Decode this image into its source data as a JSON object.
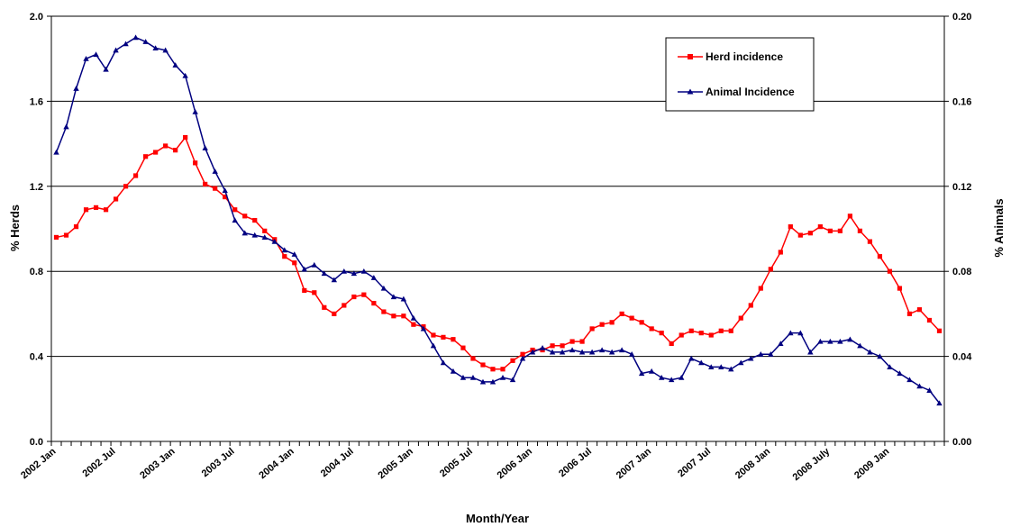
{
  "chart_data": {
    "type": "line",
    "title": "",
    "xlabel": "Month/Year",
    "ylabel_left": "% Herds",
    "ylabel_right": "% Animals",
    "ylim_left": [
      0,
      2.0
    ],
    "ylim_right": [
      0,
      0.2
    ],
    "yticks_left": [
      "0.0",
      "0.4",
      "0.8",
      "1.2",
      "1.6",
      "2.0"
    ],
    "yticks_right": [
      "0.00",
      "0.04",
      "0.08",
      "0.12",
      "0.16",
      "0.20"
    ],
    "x_tick_labels": [
      {
        "month_index": 0,
        "label": "2002 Jan"
      },
      {
        "month_index": 6,
        "label": "2002 Jul"
      },
      {
        "month_index": 12,
        "label": "2003 Jan"
      },
      {
        "month_index": 18,
        "label": "2003 Jul"
      },
      {
        "month_index": 24,
        "label": "2004 Jan"
      },
      {
        "month_index": 30,
        "label": "2004 Jul"
      },
      {
        "month_index": 36,
        "label": "2005 Jan"
      },
      {
        "month_index": 42,
        "label": "2005 Jul"
      },
      {
        "month_index": 48,
        "label": "2006 Jan"
      },
      {
        "month_index": 54,
        "label": "2006 Jul"
      },
      {
        "month_index": 60,
        "label": "2007 Jan"
      },
      {
        "month_index": 66,
        "label": "2007 Jul"
      },
      {
        "month_index": 72,
        "label": "2008 Jan"
      },
      {
        "month_index": 78,
        "label": "2008 July"
      },
      {
        "month_index": 84,
        "label": "2009 Jan"
      }
    ],
    "grid": true,
    "legend_position": "top-right",
    "series": [
      {
        "name": "Herd incidence",
        "axis": "left",
        "color": "#ff0000",
        "marker": "square",
        "values": [
          0.96,
          0.97,
          1.01,
          1.09,
          1.1,
          1.09,
          1.14,
          1.2,
          1.25,
          1.34,
          1.36,
          1.39,
          1.37,
          1.43,
          1.31,
          1.21,
          1.19,
          1.15,
          1.09,
          1.06,
          1.04,
          0.99,
          0.95,
          0.87,
          0.84,
          0.71,
          0.7,
          0.63,
          0.6,
          0.64,
          0.68,
          0.69,
          0.65,
          0.61,
          0.59,
          0.59,
          0.55,
          0.54,
          0.5,
          0.49,
          0.48,
          0.44,
          0.39,
          0.36,
          0.34,
          0.34,
          0.38,
          0.41,
          0.43,
          0.43,
          0.45,
          0.45,
          0.47,
          0.47,
          0.53,
          0.55,
          0.56,
          0.6,
          0.58,
          0.56,
          0.53,
          0.51,
          0.46,
          0.5,
          0.52,
          0.51,
          0.5,
          0.52,
          0.52,
          0.58,
          0.64,
          0.72,
          0.81,
          0.89,
          1.01,
          0.97,
          0.98,
          1.01,
          0.99,
          0.99,
          1.06,
          0.99,
          0.94,
          0.87,
          0.8,
          0.72,
          0.6,
          0.62,
          0.57,
          0.52
        ]
      },
      {
        "name": "Animal Incidence",
        "axis": "right",
        "color": "#000080",
        "marker": "triangle",
        "values": [
          0.136,
          0.148,
          0.166,
          0.18,
          0.182,
          0.175,
          0.184,
          0.187,
          0.19,
          0.188,
          0.185,
          0.184,
          0.177,
          0.172,
          0.155,
          0.138,
          0.127,
          0.118,
          0.104,
          0.098,
          0.097,
          0.096,
          0.094,
          0.09,
          0.088,
          0.081,
          0.083,
          0.079,
          0.076,
          0.08,
          0.079,
          0.08,
          0.077,
          0.072,
          0.068,
          0.067,
          0.058,
          0.053,
          0.045,
          0.037,
          0.033,
          0.03,
          0.03,
          0.028,
          0.028,
          0.03,
          0.029,
          0.039,
          0.042,
          0.044,
          0.042,
          0.042,
          0.043,
          0.042,
          0.042,
          0.043,
          0.042,
          0.043,
          0.041,
          0.032,
          0.033,
          0.03,
          0.029,
          0.03,
          0.039,
          0.037,
          0.035,
          0.035,
          0.034,
          0.037,
          0.039,
          0.041,
          0.041,
          0.046,
          0.051,
          0.051,
          0.042,
          0.047,
          0.047,
          0.047,
          0.048,
          0.045,
          0.042,
          0.04,
          0.035,
          0.032,
          0.029,
          0.026,
          0.024,
          0.018
        ]
      }
    ]
  }
}
